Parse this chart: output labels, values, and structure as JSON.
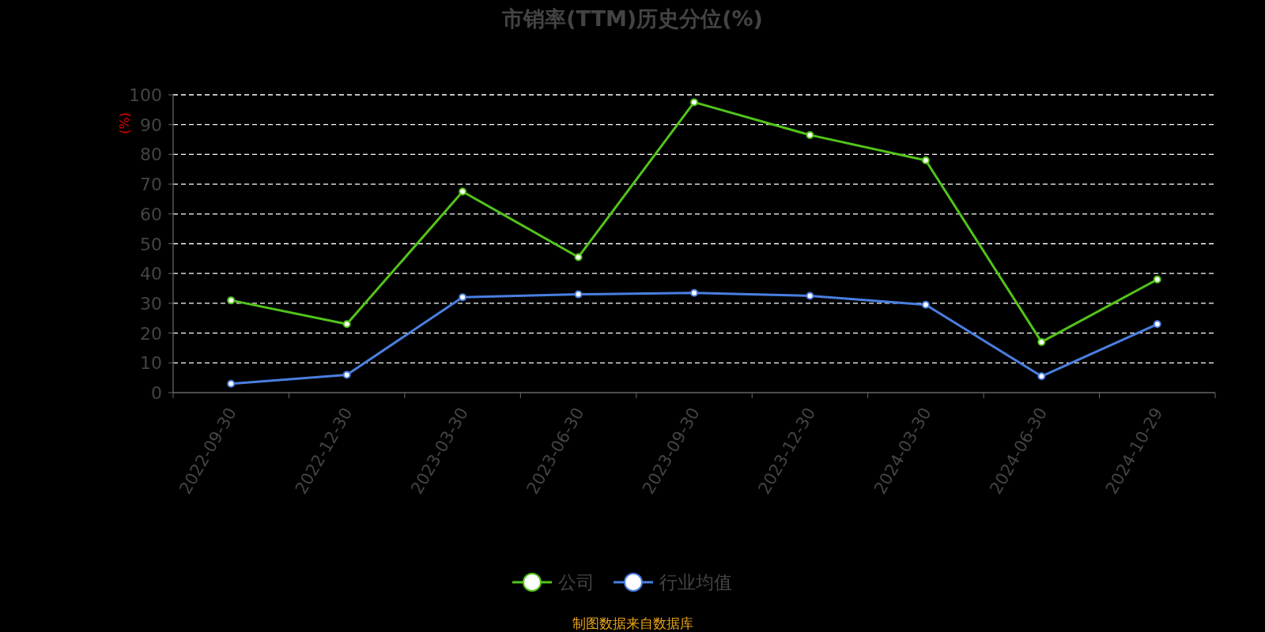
{
  "chart_data": {
    "type": "line",
    "title": "市销率(TTM)历史分位(%)",
    "ylabel": "(%)",
    "categories": [
      "2022-09-30",
      "2022-12-30",
      "2023-03-30",
      "2023-06-30",
      "2023-09-30",
      "2023-12-30",
      "2024-03-30",
      "2024-06-30",
      "2024-10-29"
    ],
    "series": [
      {
        "name": "公司",
        "color": "#52c41a",
        "values": [
          31,
          23,
          67.5,
          45.5,
          97.5,
          86.5,
          78,
          17,
          38
        ]
      },
      {
        "name": "行业均值",
        "color": "#4a7fe0",
        "values": [
          3,
          6,
          32,
          33,
          33.5,
          32.5,
          29.5,
          5.5,
          23
        ]
      }
    ],
    "ylim": [
      0,
      100
    ],
    "yticks": [
      0,
      10,
      20,
      30,
      40,
      50,
      60,
      70,
      80,
      90,
      100
    ],
    "grid": "y",
    "legend": "bottom",
    "marker": "circle",
    "line_style": "solid",
    "annotations": [
      "制图数据来自数据库"
    ]
  }
}
